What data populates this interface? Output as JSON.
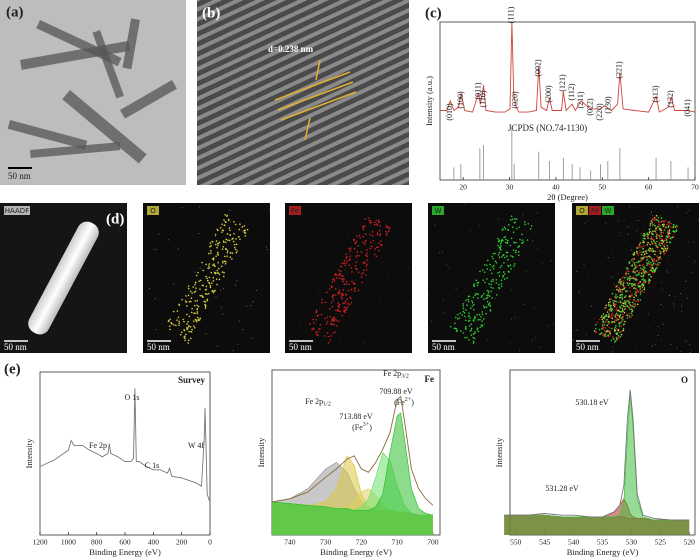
{
  "panels": {
    "a": {
      "label": "(a)",
      "scale_bar": "50 nm"
    },
    "b": {
      "label": "(b)",
      "d_spacing": "d=0.238 nm"
    },
    "c": {
      "label": "(c)",
      "reference": "JCPDS (NO.74-1130)"
    },
    "d": {
      "label": "(d)",
      "maps": [
        {
          "titles": [
            "HAADF"
          ],
          "scale_bar": "50 nm"
        },
        {
          "titles": [
            "O"
          ],
          "colors": [
            "#d8d040"
          ],
          "scale_bar": "50 nm"
        },
        {
          "titles": [
            "Fe"
          ],
          "colors": [
            "#d02020"
          ],
          "scale_bar": "50 nm"
        },
        {
          "titles": [
            "W"
          ],
          "colors": [
            "#30d030"
          ],
          "scale_bar": "50 nm"
        },
        {
          "titles": [
            "O",
            "Fe",
            "W"
          ],
          "colors": [
            "#d8d040",
            "#d02020",
            "#30d030"
          ],
          "scale_bar": "50 nm"
        }
      ]
    },
    "e": {
      "label": "(e)"
    }
  },
  "chart_data": [
    {
      "type": "line",
      "x_label": "2θ (Degree)",
      "y_label": "Intensity (a.u.)",
      "xlim": [
        15,
        70
      ],
      "ylim": [
        0,
        100
      ],
      "xticks": [
        20,
        30,
        40,
        50,
        60,
        70
      ],
      "series": [
        {
          "color": "#d0443c",
          "x": [
            15,
            16.5,
            17.2,
            18,
            19,
            19.6,
            20.3,
            22,
            23.3,
            23.7,
            24.1,
            24.4,
            24.9,
            27,
            29,
            30.1,
            30.5,
            30.9,
            31.3,
            32,
            34,
            35.8,
            36.3,
            36.8,
            38,
            38.6,
            39.2,
            41.2,
            41.6,
            42.2,
            43.5,
            44.2,
            45.4,
            47.5,
            49.6,
            50.5,
            51.4,
            52,
            53.3,
            53.8,
            54.5,
            57,
            60,
            61.6,
            62.3,
            64.2,
            64.9,
            65.6,
            68.5,
            70
          ],
          "values": [
            44,
            44,
            50,
            44,
            46,
            55,
            44,
            43,
            55,
            48,
            54,
            60,
            44,
            43,
            43,
            45,
            100,
            55,
            47,
            43,
            43,
            44,
            72,
            46,
            44,
            52,
            44,
            44,
            56,
            44,
            48,
            44,
            50,
            45,
            45,
            47,
            45,
            44,
            48,
            68,
            45,
            44,
            43,
            53,
            43,
            46,
            52,
            44,
            44,
            43
          ]
        },
        {
          "type": "stick",
          "color": "#888888",
          "x": [
            18,
            19.5,
            23.6,
            24.4,
            30.5,
            31,
            36.3,
            38.6,
            41.6,
            43.5,
            45.2,
            47.5,
            49.6,
            51.2,
            53.8,
            61.6,
            64.8,
            68.5
          ],
          "values": [
            8,
            10,
            20,
            22,
            34,
            10,
            18,
            12,
            14,
            10,
            8,
            6,
            10,
            12,
            20,
            14,
            12,
            8
          ]
        }
      ],
      "peak_labels": [
        {
          "label": "(010)",
          "x": 17.2
        },
        {
          "label": "(100)",
          "x": 19.6
        },
        {
          "label": "(011)",
          "x": 23.3
        },
        {
          "label": "(110)",
          "x": 24.4
        },
        {
          "label": "(111)",
          "x": 30.5
        },
        {
          "label": "(020)",
          "x": 31.3
        },
        {
          "label": "(002)",
          "x": 36.3
        },
        {
          "label": "(200)",
          "x": 38.6
        },
        {
          "label": "(121)",
          "x": 41.6
        },
        {
          "label": "(112)",
          "x": 43.5
        },
        {
          "label": "(211)",
          "x": 45.4
        },
        {
          "label": "(022)",
          "x": 47.5
        },
        {
          "label": "(220)",
          "x": 49.6
        },
        {
          "label": "(130)",
          "x": 51.4
        },
        {
          "label": "(221)",
          "x": 53.8
        },
        {
          "label": "(113)",
          "x": 61.6
        },
        {
          "label": "(132)",
          "x": 64.9
        },
        {
          "label": "(041)",
          "x": 68.5
        }
      ]
    },
    {
      "type": "line",
      "title": "Survey",
      "x_label": "Binding Energy (eV)",
      "y_label": "Intensity",
      "xlim": [
        1200,
        0
      ],
      "ylim": [
        0,
        100
      ],
      "xticks": [
        1200,
        1000,
        800,
        600,
        400,
        200,
        0
      ],
      "series": [
        {
          "color": "#777777",
          "x": [
            1200,
            1100,
            1000,
            980,
            960,
            900,
            850,
            800,
            760,
            720,
            711,
            700,
            650,
            600,
            560,
            540,
            530,
            520,
            500,
            450,
            400,
            350,
            300,
            285,
            270,
            200,
            100,
            60,
            40,
            35,
            30,
            20,
            0
          ],
          "values": [
            42,
            46,
            52,
            58,
            55,
            55,
            52,
            50,
            48,
            50,
            56,
            50,
            48,
            45,
            45,
            47,
            90,
            45,
            45,
            42,
            40,
            40,
            38,
            41,
            36,
            35,
            32,
            30,
            60,
            78,
            60,
            25,
            20
          ]
        }
      ],
      "annotations": [
        {
          "text": "Fe 2p"
        },
        {
          "text": "O 1s"
        },
        {
          "text": "C 1s"
        },
        {
          "text": "W 4f"
        }
      ]
    },
    {
      "type": "line",
      "title": "Fe",
      "x_label": "Binding Energy (eV)",
      "y_label": "Intensity",
      "xlim": [
        745,
        698
      ],
      "ylim": [
        0,
        100
      ],
      "xticks": [
        740,
        730,
        720,
        710,
        700
      ],
      "series": [
        {
          "color": "#c0392b",
          "fill": true,
          "x": [
            745,
            740,
            735,
            730,
            727,
            724,
            722,
            720,
            718,
            716,
            714,
            712,
            710,
            709,
            708,
            706,
            704,
            702,
            700
          ],
          "values": [
            20,
            19,
            18,
            17,
            16,
            16,
            15,
            15,
            15,
            15,
            15,
            15,
            14,
            14,
            14,
            13,
            12,
            12,
            12
          ]
        },
        {
          "color": "#9a9a9a",
          "fill": true,
          "x": [
            745,
            740,
            735,
            730,
            727,
            724,
            722,
            720,
            718,
            716,
            714,
            712,
            710,
            709,
            708,
            706,
            704,
            702,
            700
          ],
          "values": [
            20,
            22,
            28,
            40,
            44,
            38,
            28,
            20,
            16,
            15,
            15,
            15,
            14,
            14,
            14,
            13,
            12,
            12,
            12
          ]
        },
        {
          "color": "#d8c840",
          "fill": true,
          "x": [
            745,
            740,
            735,
            730,
            727,
            724,
            722,
            720,
            718,
            716,
            714,
            712,
            710,
            709,
            708,
            706,
            704,
            702,
            700
          ],
          "values": [
            20,
            19,
            18,
            20,
            28,
            48,
            42,
            25,
            17,
            15,
            15,
            15,
            14,
            14,
            14,
            13,
            12,
            12,
            12
          ]
        },
        {
          "color": "#e0d060",
          "fill": true,
          "x": [
            745,
            740,
            735,
            730,
            727,
            724,
            722,
            720,
            718,
            716,
            714,
            712,
            710,
            709,
            708,
            706,
            704,
            702,
            700
          ],
          "values": [
            20,
            19,
            18,
            17,
            16,
            17,
            20,
            26,
            28,
            24,
            17,
            15,
            14,
            14,
            14,
            13,
            12,
            12,
            12
          ]
        },
        {
          "color": "#70e070",
          "fill": true,
          "x": [
            745,
            740,
            735,
            730,
            727,
            724,
            722,
            720,
            718,
            716,
            714,
            712,
            710,
            709,
            708,
            706,
            704,
            702,
            700
          ],
          "values": [
            20,
            19,
            18,
            17,
            16,
            16,
            15,
            17,
            22,
            35,
            50,
            45,
            30,
            24,
            18,
            13,
            12,
            12,
            12
          ]
        },
        {
          "color": "#30c030",
          "fill": true,
          "x": [
            745,
            740,
            735,
            730,
            727,
            724,
            722,
            720,
            718,
            716,
            714,
            712,
            710,
            709,
            708,
            706,
            704,
            702,
            700
          ],
          "values": [
            20,
            19,
            18,
            17,
            16,
            16,
            15,
            15,
            15,
            17,
            25,
            50,
            72,
            74,
            59,
            28,
            16,
            13,
            12
          ]
        },
        {
          "color": "#8a6a3a",
          "x": [
            745,
            740,
            735,
            730,
            727,
            724,
            722,
            720,
            718,
            716,
            714,
            712,
            710,
            709,
            708,
            706,
            704,
            702,
            700
          ],
          "values": [
            20,
            22,
            26,
            35,
            40,
            46,
            48,
            40,
            38,
            44,
            52,
            62,
            82,
            84,
            70,
            40,
            28,
            22,
            18
          ]
        }
      ],
      "annotations": [
        {
          "text": "Fe 2p",
          "sub": "1/2"
        },
        {
          "text": "Fe 2p",
          "sub": "3/2"
        },
        {
          "text": "713.88 eV"
        },
        {
          "text": "(Fe",
          "sup": "3+",
          "tail": ")"
        },
        {
          "text": "709.88 eV"
        },
        {
          "text": "(Fe",
          "sup": "2+",
          "tail": ")"
        }
      ]
    },
    {
      "type": "line",
      "title": "O",
      "x_label": "Binding Energy (eV)",
      "y_label": "Intensity",
      "xlim": [
        551,
        519
      ],
      "ylim": [
        0,
        100
      ],
      "xticks": [
        550,
        545,
        540,
        535,
        530,
        525,
        520
      ],
      "series": [
        {
          "color": "#c0392b",
          "fill": true,
          "x": [
            552,
            548,
            545,
            542,
            540,
            537,
            535,
            533,
            532,
            531.3,
            530.7,
            530.2,
            529.7,
            529,
            528,
            526,
            523,
            520
          ],
          "values": [
            12,
            12,
            12,
            11,
            11,
            11,
            11,
            11,
            11,
            11,
            10,
            10,
            10,
            10,
            10,
            9,
            9,
            9
          ]
        },
        {
          "color": "#b03020",
          "fill": true,
          "x": [
            552,
            548,
            545,
            542,
            540,
            537,
            535,
            533,
            532,
            531.3,
            530.7,
            530.2,
            529.7,
            529,
            528,
            526,
            523,
            520
          ],
          "values": [
            12,
            12,
            12,
            11,
            11,
            11,
            11,
            14,
            18,
            22,
            18,
            13,
            11,
            10,
            10,
            9,
            9,
            9
          ]
        },
        {
          "color": "#40c040",
          "fill": true,
          "x": [
            552,
            548,
            545,
            542,
            540,
            537,
            535,
            533,
            532,
            531.3,
            530.7,
            530.2,
            529.7,
            529,
            528,
            526,
            523,
            520
          ],
          "values": [
            12,
            12,
            12,
            11,
            11,
            11,
            11,
            11,
            12,
            20,
            60,
            86,
            65,
            22,
            11,
            9,
            9,
            9
          ]
        },
        {
          "color": "#777777",
          "x": [
            552,
            548,
            545,
            542,
            540,
            537,
            535,
            533,
            532,
            531.3,
            530.7,
            530.2,
            529.7,
            529,
            528,
            526,
            523,
            520
          ],
          "values": [
            12,
            12,
            13,
            12,
            12,
            11,
            11,
            14,
            18,
            30,
            70,
            88,
            70,
            25,
            12,
            10,
            9,
            9
          ]
        }
      ],
      "annotations": [
        {
          "text": "530.18 eV"
        },
        {
          "text": "531.28 eV"
        }
      ]
    }
  ]
}
